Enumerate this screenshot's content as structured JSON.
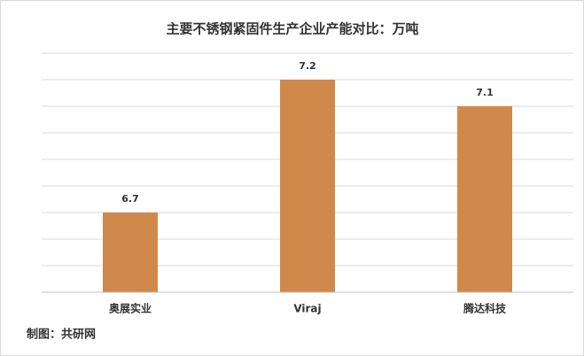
{
  "chart_data": {
    "type": "bar",
    "title": "主要不锈钢紧固件生产企业产能对比：万吨",
    "categories": [
      "奥展实业",
      "Viraj",
      "腾达科技"
    ],
    "values": [
      6.7,
      7.2,
      7.1
    ],
    "color": "#d0894b",
    "ylim": [
      6.4,
      7.3
    ],
    "yticks": [
      6.4,
      6.5,
      6.6,
      6.7,
      6.8,
      6.9,
      7.0,
      7.1,
      7.2,
      7.3
    ],
    "grid": true,
    "source": "制图：共研网"
  }
}
